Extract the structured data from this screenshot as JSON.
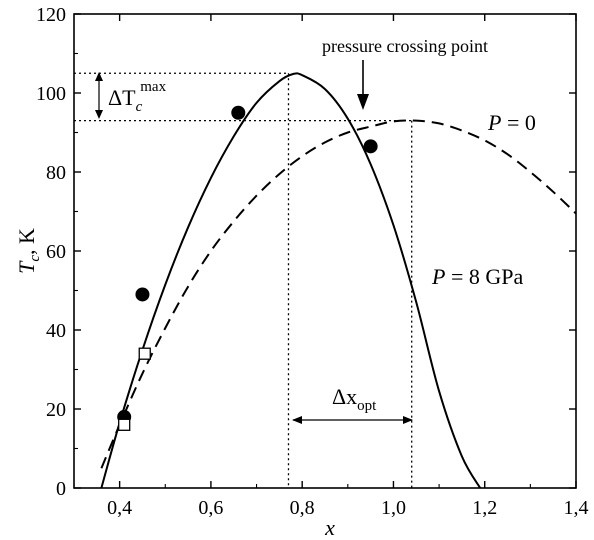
{
  "chart_data": {
    "type": "line",
    "xlabel": "x",
    "ylabel": "T_c, K",
    "xlim": [
      0.3,
      1.4
    ],
    "ylim": [
      0,
      120
    ],
    "x_ticks": [
      0.4,
      0.6,
      0.8,
      1.0,
      1.2,
      1.4
    ],
    "x_tick_labels": [
      "0,4",
      "0,6",
      "0,8",
      "1,0",
      "1,2",
      "1,4"
    ],
    "y_ticks": [
      0,
      20,
      40,
      60,
      80,
      100,
      120
    ],
    "y_tick_labels": [
      "0",
      "20",
      "40",
      "60",
      "80",
      "100",
      "120"
    ],
    "series": [
      {
        "name": "P = 8 GPa",
        "style": "solid",
        "x": [
          0.36,
          0.4,
          0.45,
          0.5,
          0.55,
          0.6,
          0.65,
          0.7,
          0.75,
          0.78,
          0.8,
          0.85,
          0.9,
          0.95,
          1.0,
          1.05,
          1.1,
          1.15,
          1.19
        ],
        "y": [
          0.0,
          16.5,
          35.0,
          51.5,
          66.0,
          78.5,
          89.0,
          97.5,
          103.0,
          104.8,
          104.5,
          101.0,
          93.5,
          82.0,
          66.5,
          47.0,
          24.5,
          8.0,
          0.0
        ]
      },
      {
        "name": "P = 0",
        "style": "dashed",
        "x": [
          0.36,
          0.4,
          0.45,
          0.5,
          0.55,
          0.6,
          0.65,
          0.7,
          0.75,
          0.8,
          0.85,
          0.9,
          0.95,
          1.0,
          1.05,
          1.1,
          1.15,
          1.2,
          1.25,
          1.3,
          1.35,
          1.4
        ],
        "y": [
          5.0,
          16.0,
          29.0,
          40.5,
          51.0,
          60.0,
          67.5,
          74.0,
          79.5,
          84.0,
          87.5,
          90.0,
          91.5,
          92.8,
          93.0,
          92.3,
          90.5,
          88.0,
          84.5,
          80.0,
          75.0,
          69.5
        ]
      }
    ],
    "points_filled": {
      "x": [
        0.41,
        0.45,
        0.66,
        0.95
      ],
      "y": [
        18,
        49,
        95,
        86.5
      ]
    },
    "points_open": {
      "x": [
        0.41,
        0.455
      ],
      "y": [
        16,
        34
      ]
    },
    "reference_lines": {
      "h_max": 105,
      "h_p0": 93,
      "v_left": 0.77,
      "v_right": 1.04
    },
    "annotations": {
      "crossing": "pressure crossing point",
      "p8": "P = 8 GPa",
      "p0": "P = 0",
      "delta_tc_base": "ΔT",
      "delta_tc_sub": "c",
      "delta_tc_sup": "max",
      "delta_x_base": "Δx",
      "delta_x_sub": "opt"
    },
    "grid": false,
    "legend": "none"
  },
  "labels": {
    "x_axis_title": "x",
    "y_axis_title_main": "T",
    "y_axis_title_sub": "c",
    "y_axis_title_unit": ", K"
  }
}
